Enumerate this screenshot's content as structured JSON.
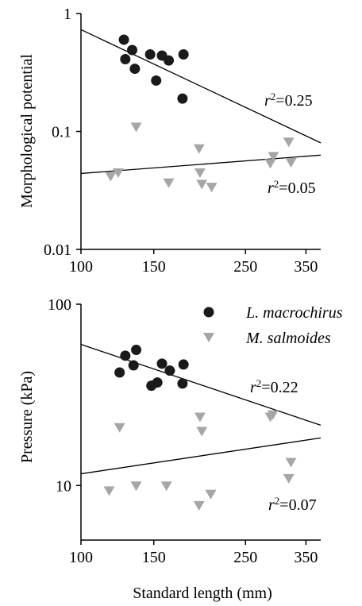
{
  "colors": {
    "L. macrochirus": "#1a1a1a",
    "M. salmoides": "#a6a6a6"
  },
  "x_axis_label": "Standard length (mm)",
  "legend": [
    {
      "label": "L. macrochirus",
      "marker": "circle"
    },
    {
      "label": "M. salmoides",
      "marker": "triangle-down"
    }
  ],
  "chart_data": [
    {
      "type": "scatter",
      "title": "",
      "xlabel": "",
      "ylabel": "Morphological potential",
      "xlim": [
        100,
        380
      ],
      "ylim": [
        0.01,
        1
      ],
      "yscale": "log",
      "xticks": [
        100,
        150,
        250,
        350
      ],
      "xtick_labels": [
        "100",
        "150",
        "250",
        "350"
      ],
      "yticks": [
        0.01,
        0.1,
        1
      ],
      "ytick_labels": [
        "0.01",
        "0.1",
        "1"
      ],
      "series": [
        {
          "name": "L. macrochirus",
          "marker": "circle",
          "x": [
            127,
            128,
            133,
            135,
            147,
            152,
            157,
            163,
            176,
            177
          ],
          "y": [
            0.6,
            0.41,
            0.49,
            0.34,
            0.45,
            0.27,
            0.44,
            0.4,
            0.19,
            0.45
          ]
        },
        {
          "name": "M. salmoides",
          "marker": "triangle-down",
          "x": [
            118,
            123,
            136,
            163,
            193,
            194,
            196,
            207,
            287,
            292,
            318,
            322
          ],
          "y": [
            0.042,
            0.045,
            0.11,
            0.037,
            0.072,
            0.045,
            0.036,
            0.034,
            0.054,
            0.062,
            0.082,
            0.055
          ]
        }
      ],
      "regressions": [
        {
          "series": "L. macrochirus",
          "x": [
            100,
            380
          ],
          "y": [
            0.73,
            0.08
          ],
          "label_prefix": "r",
          "label_suffix": "=0.25"
        },
        {
          "series": "M. salmoides",
          "x": [
            100,
            380
          ],
          "y": [
            0.044,
            0.063
          ],
          "label_prefix": "r",
          "label_suffix": "=0.05"
        }
      ]
    },
    {
      "type": "scatter",
      "title": "",
      "xlabel": "Standard length (mm)",
      "ylabel": "Pressure (kPa)",
      "xlim": [
        100,
        380
      ],
      "ylim": [
        5,
        100
      ],
      "yscale": "log",
      "xticks": [
        100,
        150,
        250,
        350
      ],
      "xtick_labels": [
        "100",
        "150",
        "250",
        "350"
      ],
      "yticks": [
        10,
        100
      ],
      "ytick_labels": [
        "10",
        "100"
      ],
      "series": [
        {
          "name": "L. macrochirus",
          "marker": "circle",
          "x": [
            124,
            128,
            134,
            136,
            148,
            153,
            157,
            164,
            176,
            177
          ],
          "y": [
            42,
            52,
            46,
            56,
            35.5,
            37,
            47,
            43,
            36.5,
            46.5
          ]
        },
        {
          "name": "M. salmoides",
          "marker": "triangle-down",
          "x": [
            117,
            124,
            136,
            161,
            193,
            194,
            196,
            206,
            287,
            291,
            318,
            322
          ],
          "y": [
            9.4,
            21,
            10,
            10,
            7.8,
            24,
            20,
            9,
            24,
            24.7,
            11,
            13.5
          ]
        }
      ],
      "regressions": [
        {
          "series": "L. macrochirus",
          "x": [
            100,
            380
          ],
          "y": [
            60,
            21.5
          ],
          "label_prefix": "r",
          "label_suffix": "=0.22"
        },
        {
          "series": "M. salmoides",
          "x": [
            100,
            380
          ],
          "y": [
            11.6,
            18.3
          ],
          "label_prefix": "r",
          "label_suffix": "=0.07"
        }
      ]
    }
  ]
}
